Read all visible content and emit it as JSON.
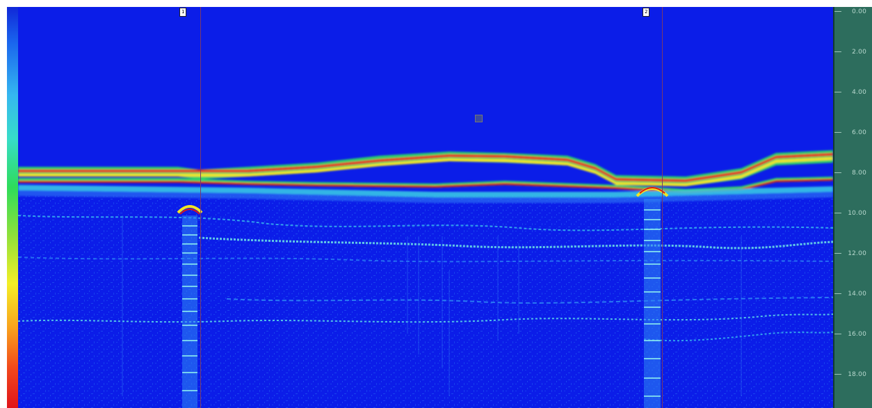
{
  "colors": {
    "background": "#0b1de8",
    "ruler": "#2d6d5d",
    "marker": "#7a3a6a",
    "band_red": "#d81818",
    "band_yellow": "#f0e020",
    "band_green": "#27d45c",
    "band_cyan": "#38d2e8"
  },
  "markers": [
    {
      "label": "1"
    },
    {
      "label": "2"
    }
  ],
  "depth_ruler": {
    "ticks": [
      "0.00",
      "2.00",
      "4.00",
      "6.00",
      "8.00",
      "10.00",
      "12.00",
      "14.00",
      "16.00",
      "18.00"
    ]
  }
}
